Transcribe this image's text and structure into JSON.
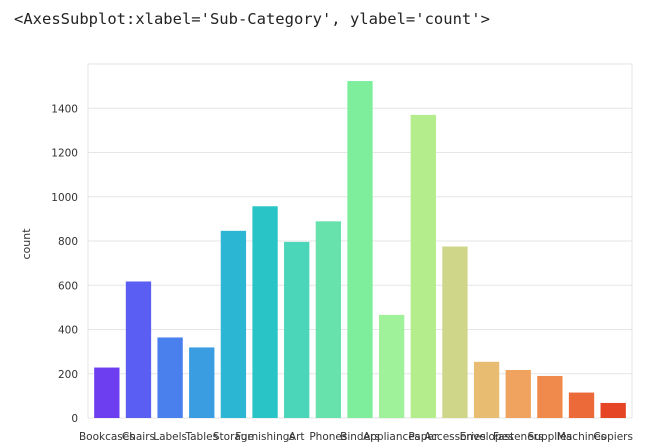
{
  "repr_text": "<AxesSubplot:xlabel='Sub-Category', ylabel='count'>",
  "chart_data": {
    "type": "bar",
    "xlabel": "",
    "ylabel": "count",
    "ylim": [
      0,
      1600
    ],
    "yticks": [
      0,
      200,
      400,
      600,
      800,
      1000,
      1200,
      1400
    ],
    "grid": true,
    "categories": [
      "Bookcases",
      "Chairs",
      "Labels",
      "Tables",
      "Storage",
      "Furnishings",
      "Art",
      "Phones",
      "Binders",
      "Appliances",
      "Paper",
      "Accessories",
      "Envelopes",
      "Fasteners",
      "Supplies",
      "Machines",
      "Copiers"
    ],
    "xtick_labels": [
      "Bookcases",
      "Chairs",
      "Labels",
      "Tables",
      "Storage",
      "Furnishings",
      "Art",
      "Phones",
      "Binders",
      "Appliances",
      "Paper",
      "Accessories",
      "Envelopes",
      "Fasteners",
      "Supplies",
      "Machines",
      "Copiers"
    ],
    "values": [
      228,
      617,
      364,
      319,
      846,
      957,
      796,
      889,
      1523,
      466,
      1370,
      775,
      254,
      217,
      190,
      115,
      68
    ],
    "colors": [
      "#6c3ef0",
      "#5b5ef2",
      "#4a80ee",
      "#3a9de2",
      "#2bb6d4",
      "#28c4c6",
      "#4cd6b9",
      "#68e2ac",
      "#7eee9c",
      "#a0f29a",
      "#b4ee8c",
      "#cfd68a",
      "#e8bd72",
      "#f0a35e",
      "#f08a4c",
      "#ec6a3a",
      "#e64525"
    ]
  }
}
